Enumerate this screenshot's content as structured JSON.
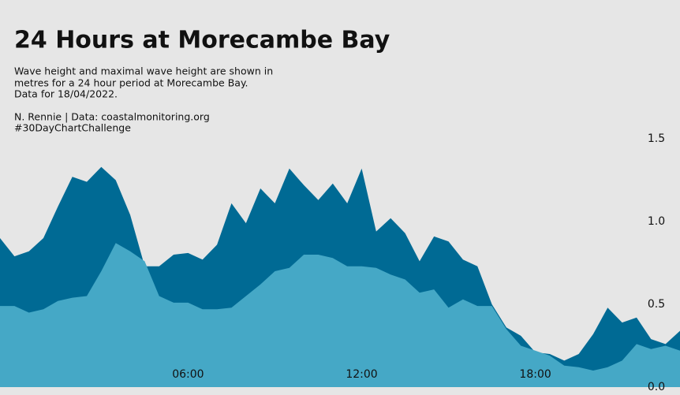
{
  "chart_data": {
    "type": "area",
    "title": "24 Hours at Morecambe Bay",
    "subtitle": [
      "Wave height and maximal wave height are shown in",
      "metres for a 24 hour period at Morecambe Bay.",
      "Data for 18/04/2022."
    ],
    "caption": [
      "N. Rennie | Data: coastalmonitoring.org",
      "#30DayChartChallenge"
    ],
    "x": [
      -0.5,
      0,
      0.5,
      1,
      1.5,
      2,
      2.5,
      3,
      3.5,
      4,
      4.5,
      5,
      5.5,
      6,
      6.5,
      7,
      7.5,
      8,
      8.5,
      9,
      9.5,
      10,
      10.5,
      11,
      11.5,
      12,
      12.5,
      13,
      13.5,
      14,
      14.5,
      15,
      15.5,
      16,
      16.5,
      17,
      17.5,
      18,
      18.5,
      19,
      19.5,
      20,
      20.5,
      21,
      21.5,
      22,
      22.5,
      23
    ],
    "series": [
      {
        "color": "#006a94",
        "values": [
          0.9,
          0.79,
          0.82,
          0.9,
          1.09,
          1.27,
          1.24,
          1.33,
          1.25,
          1.04,
          0.73,
          0.73,
          0.8,
          0.81,
          0.77,
          0.86,
          1.11,
          0.99,
          1.2,
          1.11,
          1.32,
          1.22,
          1.13,
          1.23,
          1.11,
          1.32,
          0.94,
          1.02,
          0.93,
          0.76,
          0.91,
          0.88,
          0.77,
          0.73,
          0.5,
          0.36,
          0.31,
          0.21,
          0.2,
          0.16,
          0.2,
          0.32,
          0.48,
          0.39,
          0.42,
          0.29,
          0.26,
          0.34
        ]
      },
      {
        "color": "#45a8c6",
        "values": [
          0.49,
          0.49,
          0.45,
          0.47,
          0.52,
          0.54,
          0.55,
          0.7,
          0.87,
          0.82,
          0.76,
          0.55,
          0.51,
          0.51,
          0.47,
          0.47,
          0.48,
          0.55,
          0.62,
          0.7,
          0.72,
          0.8,
          0.8,
          0.78,
          0.73,
          0.73,
          0.72,
          0.68,
          0.65,
          0.57,
          0.59,
          0.48,
          0.53,
          0.49,
          0.49,
          0.35,
          0.25,
          0.22,
          0.19,
          0.13,
          0.12,
          0.1,
          0.12,
          0.16,
          0.26,
          0.23,
          0.25,
          0.22
        ]
      }
    ],
    "xlim": [
      -0.5,
      23
    ],
    "xticks": [
      {
        "value": 6,
        "label": "06:00"
      },
      {
        "value": 12,
        "label": "12:00"
      },
      {
        "value": 18,
        "label": "18:00"
      }
    ],
    "ylim": [
      0,
      1.5
    ],
    "yticks": [
      {
        "value": 0,
        "label": "0.0"
      },
      0.5,
      {
        "value": 1,
        "label": "1.0"
      },
      1.5
    ],
    "grid": false
  }
}
